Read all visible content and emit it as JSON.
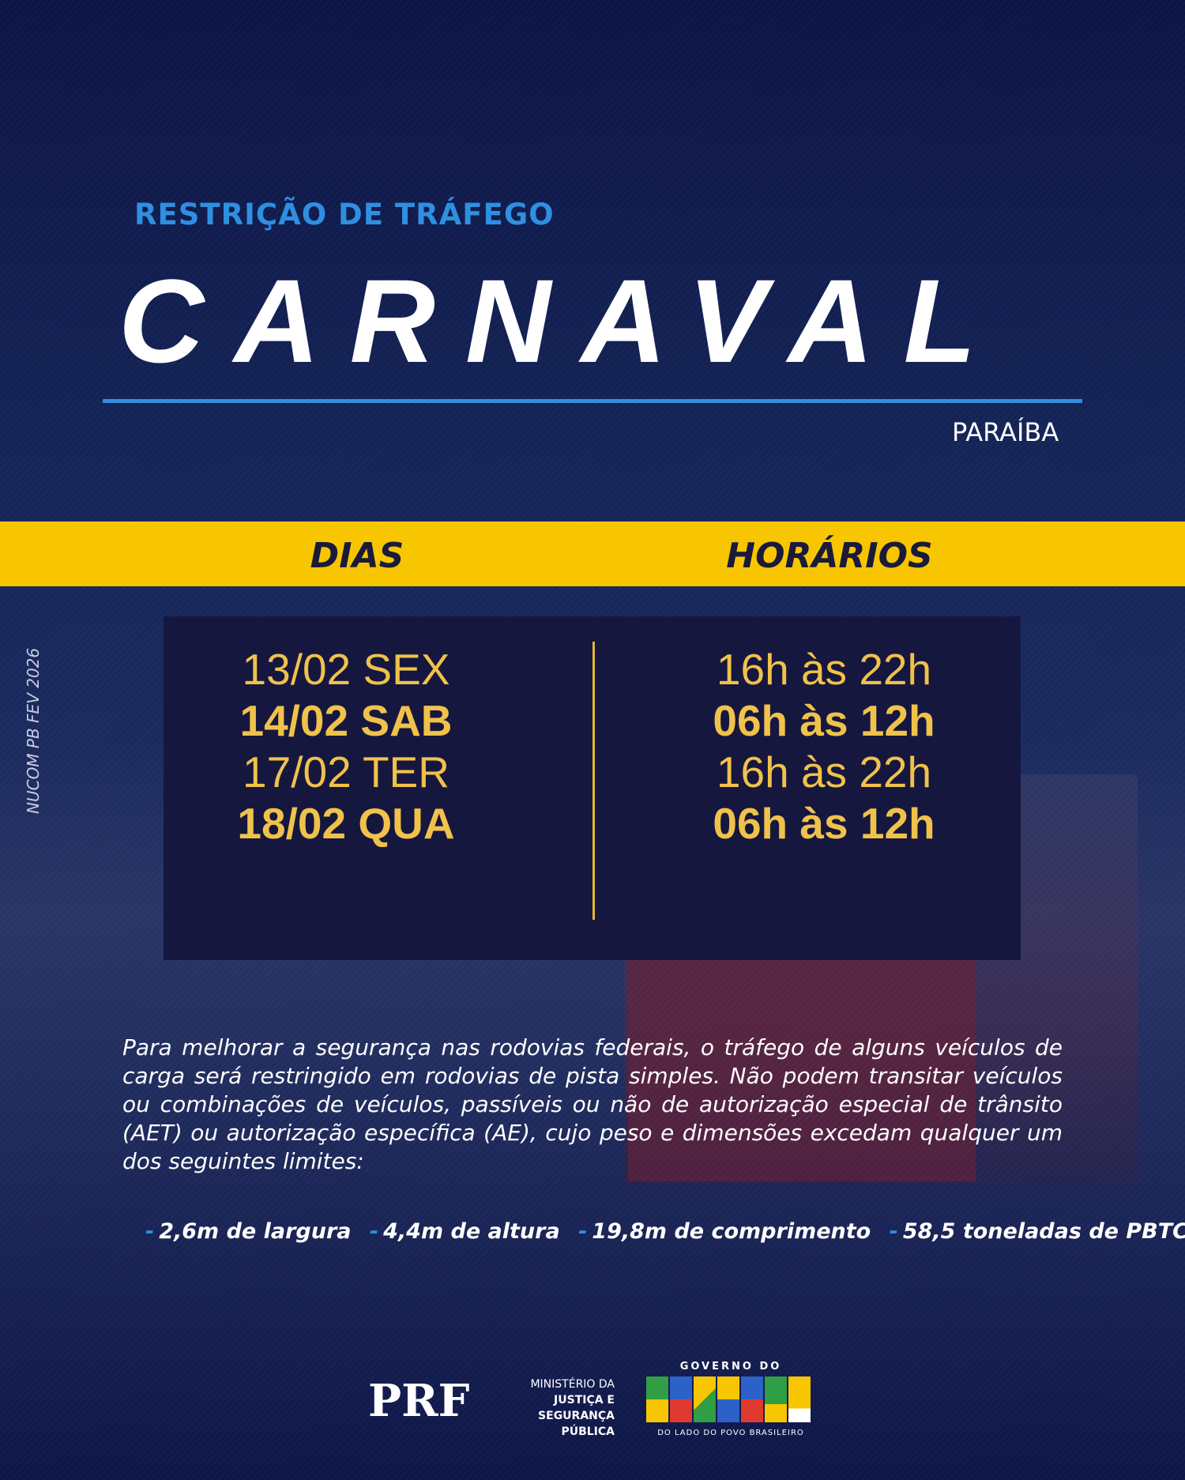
{
  "header": {
    "subtitle": "RESTRIÇÃO DE TRÁFEGO",
    "title": "CARNAVAL",
    "state": "PARAÍBA"
  },
  "table": {
    "col_days": "DIAS",
    "col_hours": "HORÁRIOS",
    "rows": [
      {
        "day": "13/02 SEX",
        "hours": "16h às 22h",
        "bold": false
      },
      {
        "day": "14/02 SAB",
        "hours": "06h às 12h",
        "bold": true
      },
      {
        "day": "17/02 TER",
        "hours": "16h às 22h",
        "bold": false
      },
      {
        "day": "18/02 QUA",
        "hours": "06h às 12h",
        "bold": true
      }
    ]
  },
  "paragraph": "Para melhorar a segurança nas rodovias federais, o tráfego de alguns veículos de carga será restringido em rodovias de pista simples. Não podem transitar veículos ou combinações de veículos, passíveis ou não de autorização especial de trânsito (AET) ou autorização específica (AE), cujo peso e dimensões excedam qualquer um dos seguintes limites:",
  "limits": [
    "2,6m de largura",
    "4,4m de altura",
    "19,8m de comprimento",
    "58,5 toneladas de PBTC"
  ],
  "credit": "NUCOM PB FEV 2026",
  "logos": {
    "prf": "PRF",
    "ministry": [
      "MINISTÉRIO DA",
      "JUSTIÇA E",
      "SEGURANÇA PÚBLICA"
    ],
    "gov_top": "GOVERNO DO",
    "gov_main": "BRASIL",
    "gov_tagline": "DO LADO DO POVO BRASILEIRO"
  },
  "colors": {
    "accent_blue": "#2f8fe0",
    "band_yellow": "#f7c600",
    "schedule_text": "#f0c24a",
    "box": "#16173f"
  }
}
